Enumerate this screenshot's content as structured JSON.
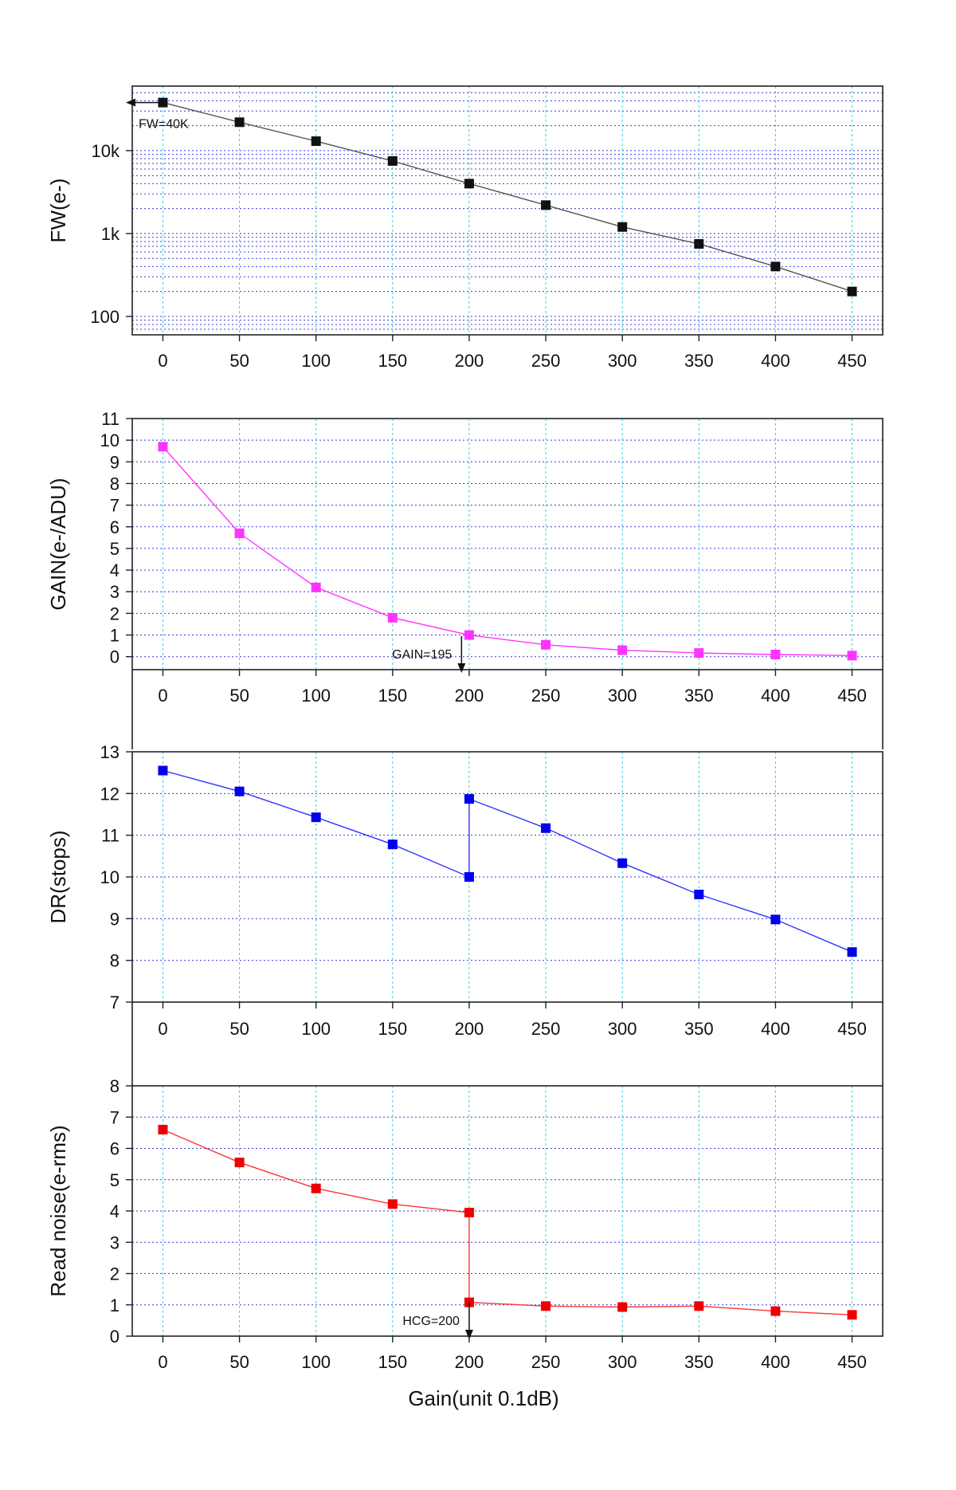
{
  "chart_data": [
    {
      "id": "fw",
      "type": "line",
      "yscale": "log",
      "ylabel": "FW(e-)",
      "xlabel": "",
      "xlim": [
        -20,
        470
      ],
      "ylim": [
        60,
        60000
      ],
      "xticks": [
        0,
        50,
        100,
        150,
        200,
        250,
        300,
        350,
        400,
        450
      ],
      "yticks": [
        {
          "value": 100,
          "label": "100"
        },
        {
          "value": 1000,
          "label": "1k"
        },
        {
          "value": 10000,
          "label": "10k"
        }
      ],
      "series": [
        {
          "color": "#111111",
          "line_color": "#555555",
          "x": [
            0,
            50,
            100,
            150,
            200,
            250,
            300,
            350,
            400,
            450
          ],
          "y": [
            38000,
            22000,
            13000,
            7500,
            4000,
            2200,
            1200,
            750,
            400,
            200
          ]
        }
      ],
      "annotation": {
        "text": "FW=40K",
        "x": 0,
        "y": 38000
      }
    },
    {
      "id": "gain",
      "type": "line",
      "ylabel": "GAIN(e-/ADU)",
      "xlabel": "",
      "xlim": [
        -20,
        470
      ],
      "ylim": [
        -0.6,
        11
      ],
      "xticks": [
        0,
        50,
        100,
        150,
        200,
        250,
        300,
        350,
        400,
        450
      ],
      "yticks": [
        0,
        1,
        2,
        3,
        4,
        5,
        6,
        7,
        8,
        9,
        10,
        11
      ],
      "series": [
        {
          "color": "#ff33ff",
          "line_color": "#ff33ff",
          "x": [
            0,
            50,
            100,
            150,
            200,
            250,
            300,
            350,
            400,
            450
          ],
          "y": [
            9.7,
            5.7,
            3.2,
            1.8,
            1.0,
            0.55,
            0.3,
            0.17,
            0.1,
            0.05
          ]
        }
      ],
      "annotation": {
        "text": "GAIN=195",
        "x": 195,
        "y": 0.95
      }
    },
    {
      "id": "dr",
      "type": "line",
      "ylabel": "DR(stops)",
      "xlabel": "",
      "xlim": [
        -20,
        470
      ],
      "ylim": [
        7,
        13
      ],
      "xticks": [
        0,
        50,
        100,
        150,
        200,
        250,
        300,
        350,
        400,
        450
      ],
      "yticks": [
        7,
        8,
        9,
        10,
        11,
        12,
        13
      ],
      "series": [
        {
          "color": "#0000ee",
          "line_color": "#3333ff",
          "x": [
            0,
            50,
            100,
            150,
            200,
            200,
            250,
            300,
            350,
            400,
            450
          ],
          "y": [
            12.55,
            12.05,
            11.43,
            10.78,
            10.0,
            11.87,
            11.17,
            10.33,
            9.58,
            8.98,
            8.2
          ]
        }
      ]
    },
    {
      "id": "noise",
      "type": "line",
      "ylabel": "Read noise(e-rms)",
      "xlabel": "Gain(unit 0.1dB)",
      "xlim": [
        -20,
        470
      ],
      "ylim": [
        0,
        8
      ],
      "xticks": [
        0,
        50,
        100,
        150,
        200,
        250,
        300,
        350,
        400,
        450
      ],
      "yticks": [
        0,
        1,
        2,
        3,
        4,
        5,
        6,
        7,
        8
      ],
      "series": [
        {
          "color": "#ee0000",
          "line_color": "#ff3333",
          "x": [
            0,
            50,
            100,
            150,
            200,
            200,
            250,
            300,
            350,
            400,
            450
          ],
          "y": [
            6.6,
            5.55,
            4.72,
            4.22,
            3.95,
            1.08,
            0.96,
            0.93,
            0.96,
            0.8,
            0.68
          ]
        }
      ],
      "annotation": {
        "text": "HCG=200",
        "x": 200,
        "y": 1.08
      }
    }
  ]
}
